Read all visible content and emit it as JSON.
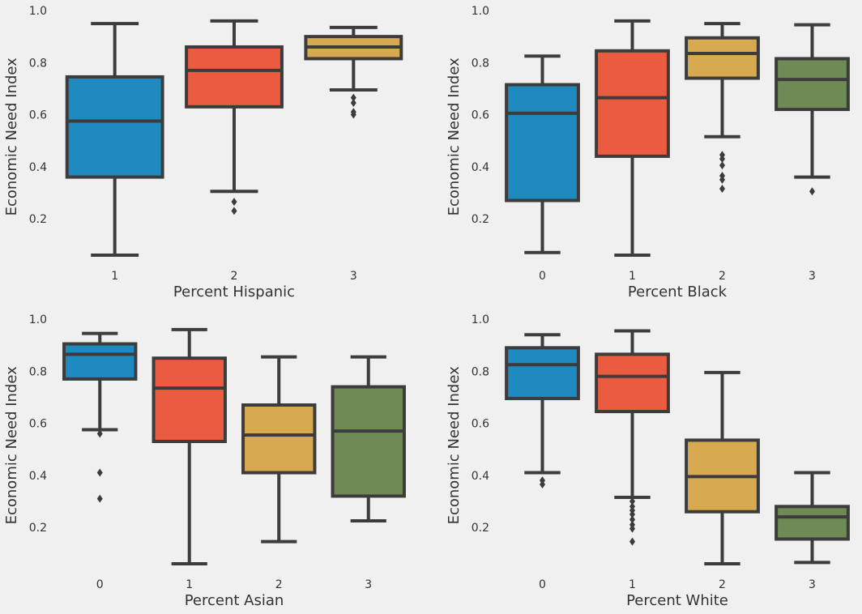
{
  "figure": {
    "background": "#f0f0f0",
    "line_color": "#3c3c3c"
  },
  "palette": [
    "#1f8ac0",
    "#ea5b40",
    "#d8aa50",
    "#708a56"
  ],
  "chart_data": [
    {
      "type": "box",
      "xlabel": "Percent Hispanic",
      "ylabel": "Economic Need Index",
      "y_ticks": [
        "0.2",
        "0.4",
        "0.6",
        "0.8",
        "1.0"
      ],
      "ylim": [
        0.03,
        1.0
      ],
      "grid": false,
      "categories": [
        "1",
        "2",
        "3"
      ],
      "color_index": [
        0,
        1,
        2
      ],
      "boxes": [
        {
          "whislo": 0.06,
          "q1": 0.36,
          "med": 0.575,
          "q3": 0.745,
          "whishi": 0.95,
          "fliers": []
        },
        {
          "whislo": 0.305,
          "q1": 0.63,
          "med": 0.77,
          "q3": 0.86,
          "whishi": 0.96,
          "fliers": [
            0.265,
            0.23
          ]
        },
        {
          "whislo": 0.695,
          "q1": 0.815,
          "med": 0.86,
          "q3": 0.9,
          "whishi": 0.935,
          "fliers": [
            0.665,
            0.645,
            0.61,
            0.6
          ]
        }
      ]
    },
    {
      "type": "box",
      "xlabel": "Percent Black",
      "ylabel": "Economic Need Index",
      "y_ticks": [
        "0.2",
        "0.4",
        "0.6",
        "0.8",
        "1.0"
      ],
      "ylim": [
        0.03,
        1.0
      ],
      "grid": false,
      "categories": [
        "0",
        "1",
        "2",
        "3"
      ],
      "color_index": [
        0,
        1,
        2,
        3
      ],
      "boxes": [
        {
          "whislo": 0.07,
          "q1": 0.27,
          "med": 0.605,
          "q3": 0.715,
          "whishi": 0.825,
          "fliers": []
        },
        {
          "whislo": 0.06,
          "q1": 0.44,
          "med": 0.665,
          "q3": 0.845,
          "whishi": 0.96,
          "fliers": []
        },
        {
          "whislo": 0.515,
          "q1": 0.74,
          "med": 0.835,
          "q3": 0.895,
          "whishi": 0.95,
          "fliers": [
            0.445,
            0.43,
            0.405,
            0.365,
            0.35,
            0.315
          ]
        },
        {
          "whislo": 0.36,
          "q1": 0.62,
          "med": 0.735,
          "q3": 0.815,
          "whishi": 0.945,
          "fliers": [
            0.305
          ]
        }
      ]
    },
    {
      "type": "box",
      "xlabel": "Percent Asian",
      "ylabel": "Economic Need Index",
      "y_ticks": [
        "0.2",
        "0.4",
        "0.6",
        "0.8",
        "1.0"
      ],
      "ylim": [
        0.03,
        1.0
      ],
      "grid": false,
      "categories": [
        "0",
        "1",
        "2",
        "3"
      ],
      "color_index": [
        0,
        1,
        2,
        3
      ],
      "boxes": [
        {
          "whislo": 0.575,
          "q1": 0.77,
          "med": 0.865,
          "q3": 0.905,
          "whishi": 0.945,
          "fliers": [
            0.56,
            0.41,
            0.31
          ]
        },
        {
          "whislo": 0.06,
          "q1": 0.53,
          "med": 0.735,
          "q3": 0.85,
          "whishi": 0.96,
          "fliers": []
        },
        {
          "whislo": 0.145,
          "q1": 0.41,
          "med": 0.555,
          "q3": 0.67,
          "whishi": 0.855,
          "fliers": []
        },
        {
          "whislo": 0.225,
          "q1": 0.32,
          "med": 0.57,
          "q3": 0.74,
          "whishi": 0.855,
          "fliers": []
        }
      ]
    },
    {
      "type": "box",
      "xlabel": "Percent White",
      "ylabel": "Economic Need Index",
      "y_ticks": [
        "0.2",
        "0.4",
        "0.6",
        "0.8",
        "1.0"
      ],
      "ylim": [
        0.03,
        1.0
      ],
      "grid": false,
      "categories": [
        "0",
        "1",
        "2",
        "3"
      ],
      "color_index": [
        0,
        1,
        2,
        3
      ],
      "boxes": [
        {
          "whislo": 0.41,
          "q1": 0.695,
          "med": 0.825,
          "q3": 0.89,
          "whishi": 0.94,
          "fliers": [
            0.38,
            0.365
          ]
        },
        {
          "whislo": 0.315,
          "q1": 0.645,
          "med": 0.78,
          "q3": 0.865,
          "whishi": 0.955,
          "fliers": [
            0.3,
            0.28,
            0.265,
            0.25,
            0.23,
            0.21,
            0.195,
            0.145
          ]
        },
        {
          "whislo": 0.06,
          "q1": 0.26,
          "med": 0.395,
          "q3": 0.535,
          "whishi": 0.795,
          "fliers": []
        },
        {
          "whislo": 0.065,
          "q1": 0.155,
          "med": 0.24,
          "q3": 0.28,
          "whishi": 0.41,
          "fliers": []
        }
      ]
    }
  ]
}
